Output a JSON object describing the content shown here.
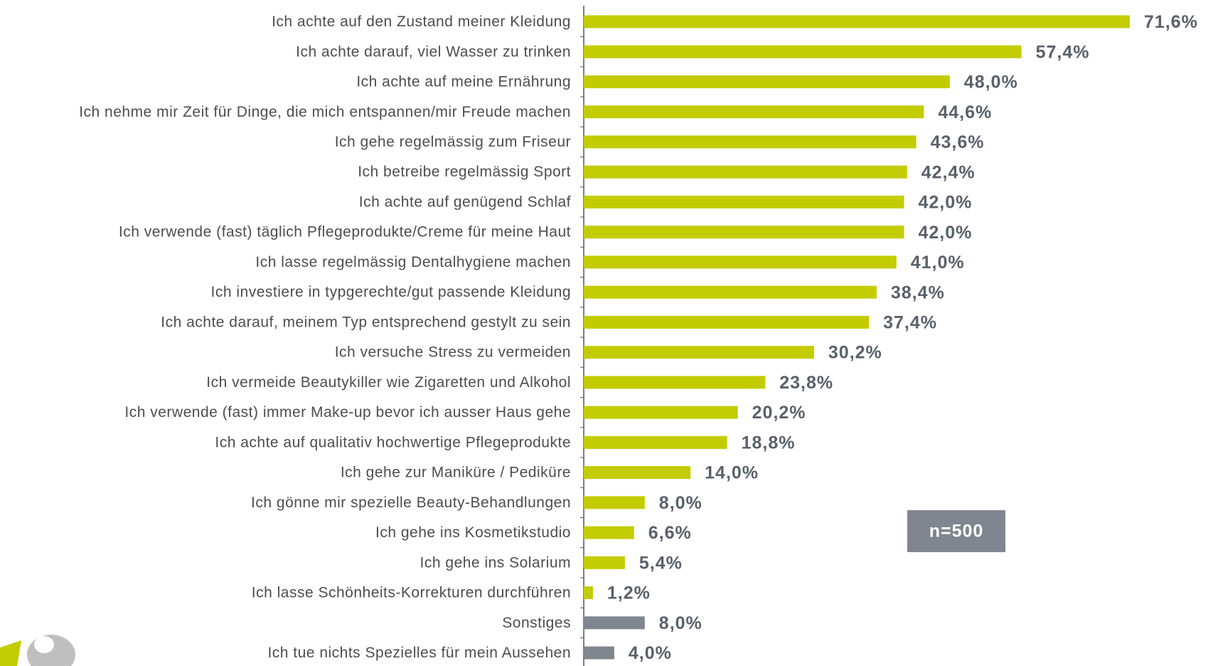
{
  "chart_data": {
    "type": "bar",
    "orientation": "horizontal",
    "categories": [
      "Ich achte auf den Zustand meiner Kleidung",
      "Ich achte darauf, viel Wasser zu trinken",
      "Ich achte auf meine Ernährung",
      "Ich nehme mir Zeit für Dinge, die mich entspannen/mir Freude machen",
      "Ich gehe regelmässig zum Friseur",
      "Ich betreibe regelmässig Sport",
      "Ich achte auf genügend Schlaf",
      "Ich verwende (fast) täglich Pflegeprodukte/Creme für meine Haut",
      "Ich lasse regelmässig Dentalhygiene machen",
      "Ich investiere in typgerechte/gut passende Kleidung",
      "Ich achte darauf, meinem Typ entsprechend gestylt zu sein",
      "Ich versuche Stress zu vermeiden",
      "Ich vermeide Beautykiller wie Zigaretten und Alkohol",
      "Ich verwende (fast) immer Make-up bevor ich ausser Haus gehe",
      "Ich achte auf qualitativ hochwertige Pflegeprodukte",
      "Ich gehe zur Maniküre / Pediküre",
      "Ich gönne mir spezielle Beauty-Behandlungen",
      "Ich gehe ins Kosmetikstudio",
      "Ich gehe ins Solarium",
      "Ich lasse Schönheits-Korrekturen durchführen",
      "Sonstiges",
      "Ich tue nichts Spezielles für mein Aussehen"
    ],
    "values": [
      71.6,
      57.4,
      48.0,
      44.6,
      43.6,
      42.4,
      42.0,
      42.0,
      41.0,
      38.4,
      37.4,
      30.2,
      23.8,
      20.2,
      18.8,
      14.0,
      8.0,
      6.6,
      5.4,
      1.2,
      8.0,
      4.0
    ],
    "value_labels": [
      "71,6%",
      "57,4%",
      "48,0%",
      "44,6%",
      "43,6%",
      "42,4%",
      "42,0%",
      "42,0%",
      "41,0%",
      "38,4%",
      "37,4%",
      "30,2%",
      "23,8%",
      "20,2%",
      "18,8%",
      "14,0%",
      "8,0%",
      "6,6%",
      "5,4%",
      "1,2%",
      "8,0%",
      "4,0%"
    ],
    "colors": [
      "#c3cc00",
      "#c3cc00",
      "#c3cc00",
      "#c3cc00",
      "#c3cc00",
      "#c3cc00",
      "#c3cc00",
      "#c3cc00",
      "#c3cc00",
      "#c3cc00",
      "#c3cc00",
      "#c3cc00",
      "#c3cc00",
      "#c3cc00",
      "#c3cc00",
      "#c3cc00",
      "#c3cc00",
      "#c3cc00",
      "#c3cc00",
      "#c3cc00",
      "#7f868f",
      "#7f868f"
    ],
    "xlim": [
      0,
      80
    ],
    "annotation": "n=500"
  }
}
